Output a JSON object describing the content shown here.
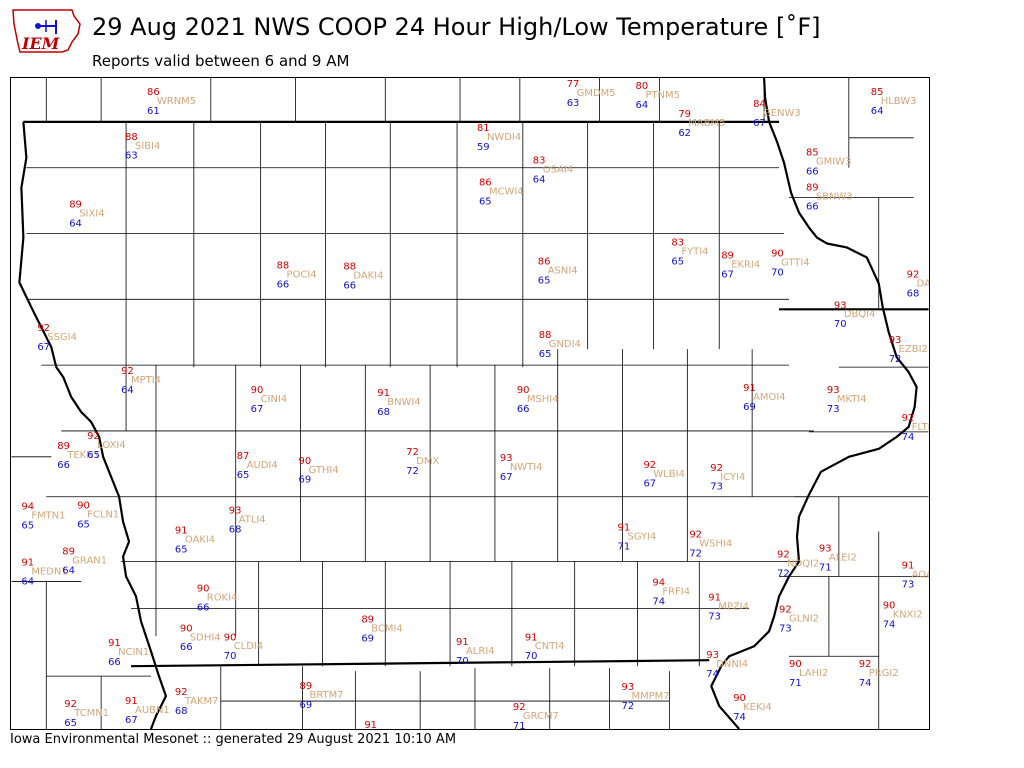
{
  "header": {
    "title": "29 Aug 2021 NWS COOP 24 Hour High/Low Temperature [˚F]",
    "subtitle": "Reports valid between 6 and 9 AM",
    "logo_text": "IEM"
  },
  "footer": {
    "text": "Iowa Environmental Mesonet :: generated 29 August 2021 10:10 AM"
  },
  "colors": {
    "high": "#d40000",
    "low": "#1010d0",
    "station": "#d2a679",
    "border": "#000000",
    "logo": "#c00000"
  },
  "stations": [
    {
      "id": "WRNM5",
      "high": "86",
      "low": "61"
    },
    {
      "id": "GMDM5",
      "high": "77",
      "low": "63"
    },
    {
      "id": "PTNM5",
      "high": "80",
      "low": "64"
    },
    {
      "id": "MABM5",
      "high": "79",
      "low": "62"
    },
    {
      "id": "GENW3",
      "high": "84",
      "low": "67"
    },
    {
      "id": "HLBW3",
      "high": "85",
      "low": "64"
    },
    {
      "id": "SIBI4",
      "high": "88",
      "low": "63"
    },
    {
      "id": "NWDI4",
      "high": "81",
      "low": "59"
    },
    {
      "id": "OSAI4",
      "high": "83",
      "low": "64"
    },
    {
      "id": "GMIW3",
      "high": "85",
      "low": "66"
    },
    {
      "id": "SBNW3",
      "high": "89",
      "low": "66"
    },
    {
      "id": "SIXI4",
      "high": "89",
      "low": "64"
    },
    {
      "id": "MCWI4",
      "high": "86",
      "low": "65"
    },
    {
      "id": "FYTI4",
      "high": "83",
      "low": "65"
    },
    {
      "id": "EKRI4",
      "high": "89",
      "low": "67"
    },
    {
      "id": "GTTI4",
      "high": "90",
      "low": "70"
    },
    {
      "id": "POCI4",
      "high": "88",
      "low": "66"
    },
    {
      "id": "DAKI4",
      "high": "88",
      "low": "66"
    },
    {
      "id": "ASNI4",
      "high": "86",
      "low": "65"
    },
    {
      "id": "DARW3",
      "high": "92",
      "low": "68"
    },
    {
      "id": "DBQI4",
      "high": "93",
      "low": "70"
    },
    {
      "id": "SSGI4",
      "high": "92",
      "low": "67"
    },
    {
      "id": "GNDI4",
      "high": "88",
      "low": "65"
    },
    {
      "id": "EZBI2",
      "high": "93",
      "low": "72"
    },
    {
      "id": "MPTI4",
      "high": "92",
      "low": "64"
    },
    {
      "id": "CINI4",
      "high": "90",
      "low": "67"
    },
    {
      "id": "BNWI4",
      "high": "91",
      "low": "68"
    },
    {
      "id": "MSHI4",
      "high": "90",
      "low": "66"
    },
    {
      "id": "AMOI4",
      "high": "91",
      "low": "69"
    },
    {
      "id": "MKTI4",
      "high": "93",
      "low": "73"
    },
    {
      "id": "FLTI2",
      "high": "92",
      "low": "74"
    },
    {
      "id": "TEKN1",
      "high": "89",
      "low": "66"
    },
    {
      "id": "LOXI4",
      "high": "92",
      "low": "65"
    },
    {
      "id": "AUDI4",
      "high": "87",
      "low": "65"
    },
    {
      "id": "GTHI4",
      "high": "90",
      "low": "69"
    },
    {
      "id": "DMX",
      "high": "72",
      "low": "72"
    },
    {
      "id": "NWTI4",
      "high": "93",
      "low": "67"
    },
    {
      "id": "WLBI4",
      "high": "92",
      "low": "67"
    },
    {
      "id": "ICYI4",
      "high": "92",
      "low": "73"
    },
    {
      "id": "FMTN1",
      "high": "94",
      "low": "65"
    },
    {
      "id": "FCLN1",
      "high": "90",
      "low": "65"
    },
    {
      "id": "ATLI4",
      "high": "93",
      "low": "68"
    },
    {
      "id": "OAKI4",
      "high": "91",
      "low": "65"
    },
    {
      "id": "SGYI4",
      "high": "91",
      "low": "71"
    },
    {
      "id": "WSHI4",
      "high": "92",
      "low": "72"
    },
    {
      "id": "MEDN1",
      "high": "91",
      "low": "64"
    },
    {
      "id": "GRAN1",
      "high": "89",
      "low": "64"
    },
    {
      "id": "NDQI2",
      "high": "92",
      "low": "72"
    },
    {
      "id": "ALEI2",
      "high": "93",
      "low": "71"
    },
    {
      "id": "AOAI2",
      "high": "91",
      "low": "73"
    },
    {
      "id": "ROKI4",
      "high": "90",
      "low": "66"
    },
    {
      "id": "FRFI4",
      "high": "94",
      "low": "74"
    },
    {
      "id": "MPZI4",
      "high": "91",
      "low": "73"
    },
    {
      "id": "GLNI2",
      "high": "92",
      "low": "73"
    },
    {
      "id": "KNXI2",
      "high": "90",
      "low": "74"
    },
    {
      "id": "BCMI4",
      "high": "89",
      "low": "69"
    },
    {
      "id": "SDHI4",
      "high": "90",
      "low": "66"
    },
    {
      "id": "CLDI4",
      "high": "90",
      "low": "70"
    },
    {
      "id": "ALRI4",
      "high": "91",
      "low": "70"
    },
    {
      "id": "CNTI4",
      "high": "91",
      "low": "70"
    },
    {
      "id": "NCIN1",
      "high": "91",
      "low": "66"
    },
    {
      "id": "DNNI4",
      "high": "93",
      "low": "74"
    },
    {
      "id": "LAHI2",
      "high": "90",
      "low": "71"
    },
    {
      "id": "PRGI2",
      "high": "92",
      "low": "74"
    },
    {
      "id": "TAKM7",
      "high": "92",
      "low": "68"
    },
    {
      "id": "BRTM7",
      "high": "89",
      "low": "69"
    },
    {
      "id": "MMPM7",
      "high": "93",
      "low": "72"
    },
    {
      "id": "TCMN1",
      "high": "92",
      "low": "65"
    },
    {
      "id": "AUBN1",
      "high": "91",
      "low": "67"
    },
    {
      "id": "GRCM7",
      "high": "92",
      "low": "71"
    },
    {
      "id": "KEKI4",
      "high": "90",
      "low": "74"
    },
    {
      "id": "BEYM7",
      "high": "91",
      "low": "70"
    }
  ]
}
